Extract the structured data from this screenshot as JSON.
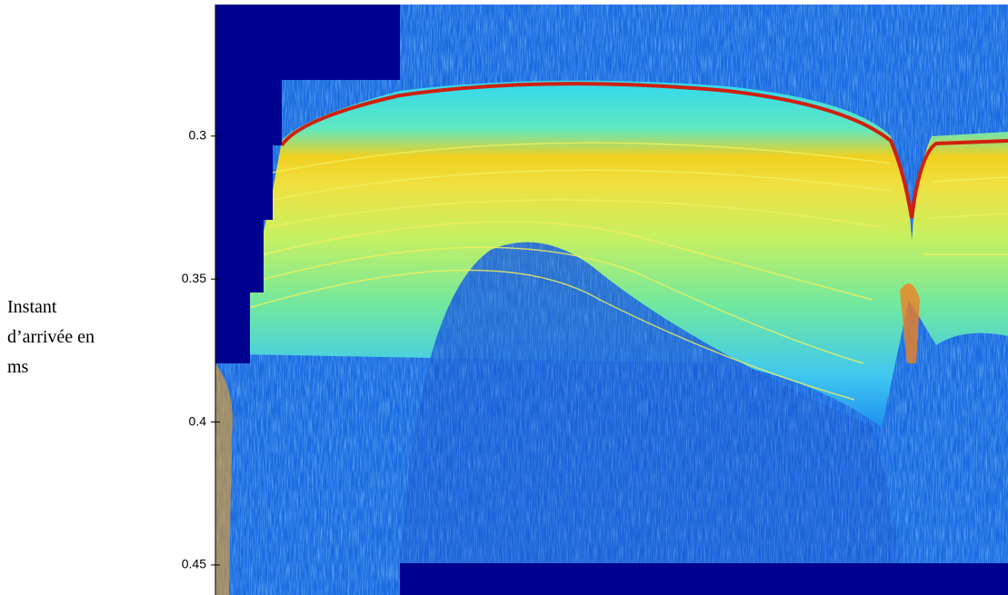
{
  "chart_data": {
    "type": "radargram",
    "ylabel": "Instant d’arrivée en ms",
    "ylim": [
      0.254,
      0.4605
    ],
    "yticks": [
      0.3,
      0.35,
      0.4,
      0.45
    ],
    "inverted_y": true
  }
}
